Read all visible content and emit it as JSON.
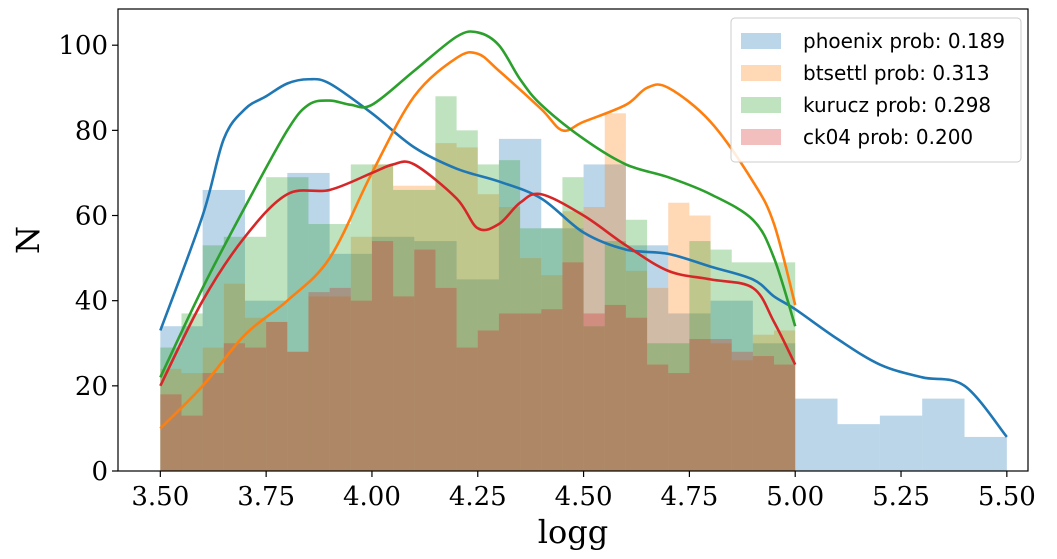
{
  "chart_data": {
    "type": "histogram",
    "xlabel": "logg",
    "ylabel": "N",
    "xlim": [
      3.4,
      5.55
    ],
    "ylim": [
      0,
      108.5
    ],
    "xticks": [
      3.5,
      3.75,
      4.0,
      4.25,
      4.5,
      4.75,
      5.0,
      5.25,
      5.5
    ],
    "xtick_labels": [
      "3.50",
      "3.75",
      "4.00",
      "4.25",
      "4.50",
      "4.75",
      "5.00",
      "5.25",
      "5.50"
    ],
    "yticks": [
      0,
      20,
      40,
      60,
      80,
      100
    ],
    "ytick_labels": [
      "0",
      "20",
      "40",
      "60",
      "80",
      "100"
    ],
    "legend_position": "top-right",
    "series": [
      {
        "name": "phoenix prob: 0.189",
        "color": "#1f77b4",
        "bins": [
          3.5,
          3.6,
          3.7,
          3.8,
          3.9,
          4.0,
          4.1,
          4.2,
          4.3,
          4.4,
          4.5,
          4.6,
          4.7,
          4.8,
          4.9,
          5.0,
          5.1,
          5.2,
          5.3,
          5.4,
          5.5
        ],
        "counts": [
          34,
          66,
          40,
          70,
          51,
          55,
          54,
          45,
          78,
          57,
          72,
          53,
          37,
          40,
          30,
          17,
          11,
          13,
          17,
          8
        ],
        "kde": [
          [
            3.5,
            33
          ],
          [
            3.6,
            60
          ],
          [
            3.65,
            78
          ],
          [
            3.7,
            85
          ],
          [
            3.75,
            88
          ],
          [
            3.8,
            91
          ],
          [
            3.85,
            92
          ],
          [
            3.9,
            91
          ],
          [
            4.0,
            84
          ],
          [
            4.1,
            76
          ],
          [
            4.2,
            71
          ],
          [
            4.3,
            68
          ],
          [
            4.4,
            64
          ],
          [
            4.5,
            56
          ],
          [
            4.6,
            52
          ],
          [
            4.7,
            51
          ],
          [
            4.8,
            48
          ],
          [
            4.9,
            45
          ],
          [
            4.95,
            41
          ],
          [
            5.0,
            38
          ],
          [
            5.1,
            31
          ],
          [
            5.2,
            25
          ],
          [
            5.3,
            22
          ],
          [
            5.4,
            20
          ],
          [
            5.5,
            8
          ]
        ]
      },
      {
        "name": "btsettl prob: 0.313",
        "color": "#ff7f0e",
        "bins": [
          3.5,
          3.55,
          3.6,
          3.65,
          3.7,
          3.75,
          3.8,
          3.85,
          3.9,
          3.95,
          4.0,
          4.05,
          4.1,
          4.15,
          4.2,
          4.25,
          4.3,
          4.35,
          4.4,
          4.45,
          4.5,
          4.55,
          4.6,
          4.65,
          4.7,
          4.75,
          4.8,
          4.85,
          4.9,
          4.95,
          5.0
        ],
        "counts": [
          24,
          23,
          29,
          44,
          36,
          35,
          28,
          41,
          41,
          55,
          72,
          67,
          67,
          77,
          76,
          65,
          62,
          50,
          46,
          61,
          62,
          84,
          47,
          43,
          63,
          60,
          30,
          26,
          32,
          33
        ],
        "kde": [
          [
            3.5,
            10
          ],
          [
            3.6,
            20
          ],
          [
            3.7,
            32
          ],
          [
            3.8,
            40
          ],
          [
            3.9,
            50
          ],
          [
            4.0,
            70
          ],
          [
            4.1,
            88
          ],
          [
            4.2,
            97
          ],
          [
            4.25,
            98
          ],
          [
            4.3,
            94
          ],
          [
            4.4,
            85
          ],
          [
            4.45,
            80
          ],
          [
            4.5,
            82
          ],
          [
            4.6,
            86
          ],
          [
            4.65,
            90
          ],
          [
            4.7,
            90
          ],
          [
            4.8,
            82
          ],
          [
            4.9,
            68
          ],
          [
            4.95,
            58
          ],
          [
            5.0,
            39
          ]
        ]
      },
      {
        "name": "kurucz prob: 0.298",
        "color": "#2ca02c",
        "bins": [
          3.5,
          3.55,
          3.6,
          3.65,
          3.7,
          3.75,
          3.8,
          3.85,
          3.9,
          3.95,
          4.0,
          4.05,
          4.1,
          4.15,
          4.2,
          4.25,
          4.3,
          4.35,
          4.4,
          4.45,
          4.5,
          4.55,
          4.6,
          4.65,
          4.7,
          4.75,
          4.8,
          4.85,
          4.9,
          4.95,
          5.0
        ],
        "counts": [
          29,
          37,
          53,
          55,
          55,
          69,
          69,
          58,
          58,
          72,
          72,
          66,
          66,
          88,
          80,
          72,
          73,
          57,
          57,
          69,
          34,
          54,
          59,
          30,
          30,
          54,
          52,
          49,
          49,
          49
        ],
        "kde": [
          [
            3.5,
            22
          ],
          [
            3.6,
            43
          ],
          [
            3.7,
            62
          ],
          [
            3.8,
            80
          ],
          [
            3.85,
            86
          ],
          [
            3.9,
            87
          ],
          [
            3.95,
            86
          ],
          [
            4.0,
            86
          ],
          [
            4.1,
            94
          ],
          [
            4.2,
            102
          ],
          [
            4.25,
            103
          ],
          [
            4.3,
            100
          ],
          [
            4.35,
            92
          ],
          [
            4.4,
            86
          ],
          [
            4.5,
            78
          ],
          [
            4.6,
            72
          ],
          [
            4.7,
            69
          ],
          [
            4.8,
            65
          ],
          [
            4.9,
            59
          ],
          [
            4.95,
            50
          ],
          [
            5.0,
            34
          ]
        ]
      },
      {
        "name": "ck04 prob: 0.200",
        "color": "#d62728",
        "bins": [
          3.5,
          3.55,
          3.6,
          3.65,
          3.7,
          3.75,
          3.8,
          3.85,
          3.9,
          3.95,
          4.0,
          4.05,
          4.1,
          4.15,
          4.2,
          4.25,
          4.3,
          4.35,
          4.4,
          4.45,
          4.5,
          4.55,
          4.6,
          4.65,
          4.7,
          4.75,
          4.8,
          4.85,
          4.9,
          4.95,
          5.0
        ],
        "counts": [
          18,
          13,
          23,
          30,
          29,
          35,
          28,
          42,
          43,
          40,
          54,
          41,
          52,
          43,
          29,
          33,
          37,
          37,
          38,
          49,
          37,
          39,
          36,
          25,
          23,
          31,
          31,
          28,
          27,
          25
        ],
        "kde": [
          [
            3.5,
            20
          ],
          [
            3.6,
            40
          ],
          [
            3.7,
            55
          ],
          [
            3.8,
            65
          ],
          [
            3.9,
            66
          ],
          [
            4.0,
            70
          ],
          [
            4.05,
            72
          ],
          [
            4.1,
            72
          ],
          [
            4.2,
            64
          ],
          [
            4.25,
            57
          ],
          [
            4.3,
            58
          ],
          [
            4.35,
            63
          ],
          [
            4.4,
            65
          ],
          [
            4.5,
            60
          ],
          [
            4.6,
            53
          ],
          [
            4.7,
            47
          ],
          [
            4.8,
            45
          ],
          [
            4.9,
            43
          ],
          [
            4.95,
            35
          ],
          [
            5.0,
            25
          ]
        ]
      }
    ]
  }
}
